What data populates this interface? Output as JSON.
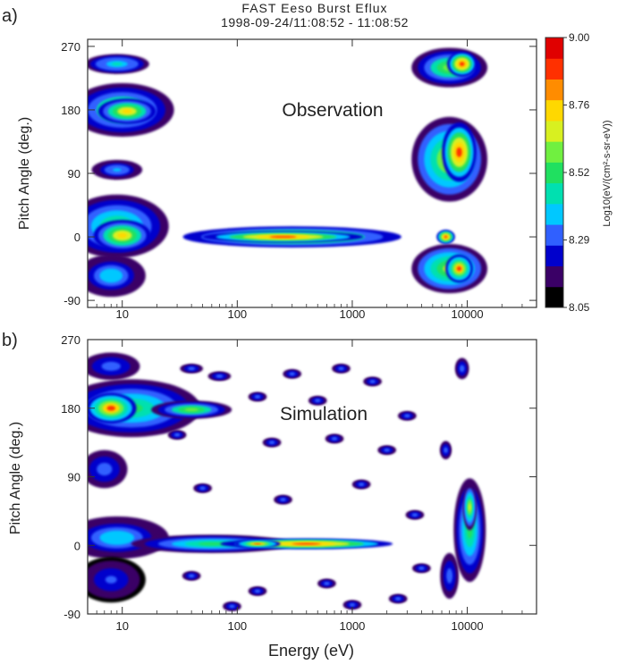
{
  "header": {
    "line1": "FAST  Eeso  Burst  Eflux",
    "line2": "1998-09-24/11:08:52  -  11:08:52"
  },
  "colorbar": {
    "label": "Log10(eV/(cm²-s-sr-eV))",
    "ticks": [
      "9.00",
      "8.76",
      "8.52",
      "8.29",
      "8.05"
    ],
    "colors": [
      "#000000",
      "#3a0066",
      "#0000cc",
      "#3060ff",
      "#00c8ff",
      "#00e0b0",
      "#20e060",
      "#70f040",
      "#d8f020",
      "#ffd800",
      "#ff8c00",
      "#ff3000",
      "#e00000"
    ]
  },
  "chart_data": [
    {
      "type": "heatmap",
      "panel_label": "a)",
      "annotation": "Observation",
      "ylabel": "Pitch Angle (deg.)",
      "xlabel": "",
      "xscale": "log",
      "xlim": [
        5,
        40000
      ],
      "ylim": [
        -100,
        280
      ],
      "xticks": [
        10,
        100,
        1000,
        10000
      ],
      "xtick_labels": [
        "10",
        "100",
        "1000",
        "10000"
      ],
      "yticks": [
        -90,
        0,
        90,
        180,
        270
      ],
      "ytick_labels": [
        "-90",
        "0",
        "90",
        "180",
        "270"
      ],
      "zlim": [
        8.05,
        9.0
      ],
      "blobs": [
        {
          "x": 10,
          "y": 180,
          "rx": 0.45,
          "ry": 38,
          "z": 8.6
        },
        {
          "x": 11,
          "y": 178,
          "rx": 0.25,
          "ry": 18,
          "z": 8.8
        },
        {
          "x": 9,
          "y": 245,
          "rx": 0.28,
          "ry": 14,
          "z": 8.45
        },
        {
          "x": 9,
          "y": 95,
          "rx": 0.22,
          "ry": 14,
          "z": 8.35
        },
        {
          "x": 9,
          "y": 15,
          "rx": 0.45,
          "ry": 45,
          "z": 8.55
        },
        {
          "x": 10,
          "y": 2,
          "rx": 0.25,
          "ry": 22,
          "z": 8.8
        },
        {
          "x": 8,
          "y": -55,
          "rx": 0.3,
          "ry": 30,
          "z": 8.4
        },
        {
          "x": 300,
          "y": 0,
          "rx": 0.95,
          "ry": 15,
          "z": 8.8
        },
        {
          "x": 250,
          "y": 0,
          "rx": 0.7,
          "ry": 8,
          "z": 8.95
        },
        {
          "x": 7000,
          "y": 110,
          "rx": 0.33,
          "ry": 60,
          "z": 8.7
        },
        {
          "x": 8500,
          "y": 120,
          "rx": 0.15,
          "ry": 42,
          "z": 8.95
        },
        {
          "x": 7000,
          "y": 240,
          "rx": 0.33,
          "ry": 28,
          "z": 8.6
        },
        {
          "x": 9000,
          "y": 245,
          "rx": 0.13,
          "ry": 18,
          "z": 8.95
        },
        {
          "x": 7000,
          "y": -45,
          "rx": 0.33,
          "ry": 35,
          "z": 8.65
        },
        {
          "x": 8500,
          "y": -45,
          "rx": 0.12,
          "ry": 20,
          "z": 8.9
        },
        {
          "x": 6500,
          "y": 0,
          "rx": 0.08,
          "ry": 10,
          "z": 8.95
        }
      ]
    },
    {
      "type": "heatmap",
      "panel_label": "b)",
      "annotation": "Simulation",
      "ylabel": "Pitch Angle (deg.)",
      "xlabel": "Energy (eV)",
      "xscale": "log",
      "xlim": [
        5,
        40000
      ],
      "ylim": [
        -90,
        270
      ],
      "xticks": [
        10,
        100,
        1000,
        10000
      ],
      "xtick_labels": [
        "10",
        "100",
        "1000",
        "10000"
      ],
      "yticks": [
        -90,
        0,
        90,
        180,
        270
      ],
      "ytick_labels": [
        "-90",
        "0",
        "90",
        "180",
        "270"
      ],
      "zlim": [
        8.05,
        9.0
      ],
      "blobs": [
        {
          "x": 12,
          "y": 180,
          "rx": 0.6,
          "ry": 38,
          "z": 8.5
        },
        {
          "x": 8,
          "y": 180,
          "rx": 0.22,
          "ry": 20,
          "z": 8.9
        },
        {
          "x": 40,
          "y": 178,
          "rx": 0.35,
          "ry": 12,
          "z": 8.6
        },
        {
          "x": 8,
          "y": 235,
          "rx": 0.25,
          "ry": 18,
          "z": 8.3
        },
        {
          "x": 7,
          "y": 100,
          "rx": 0.2,
          "ry": 25,
          "z": 8.3
        },
        {
          "x": 9,
          "y": 10,
          "rx": 0.45,
          "ry": 28,
          "z": 8.4
        },
        {
          "x": 8,
          "y": -45,
          "rx": 0.3,
          "ry": 30,
          "z": 8.25
        },
        {
          "x": 60,
          "y": 2,
          "rx": 0.7,
          "ry": 12,
          "z": 8.55
        },
        {
          "x": 400,
          "y": 2,
          "rx": 0.75,
          "ry": 7,
          "z": 8.95
        },
        {
          "x": 150,
          "y": 2,
          "rx": 0.2,
          "ry": 5,
          "z": 8.9
        },
        {
          "x": 10500,
          "y": 20,
          "rx": 0.14,
          "ry": 68,
          "z": 8.5
        },
        {
          "x": 10500,
          "y": 50,
          "rx": 0.06,
          "ry": 30,
          "z": 8.7
        },
        {
          "x": 7000,
          "y": -40,
          "rx": 0.08,
          "ry": 30,
          "z": 8.3
        },
        {
          "x": 6500,
          "y": 125,
          "rx": 0.05,
          "ry": 12,
          "z": 8.3
        },
        {
          "x": 9000,
          "y": 232,
          "rx": 0.06,
          "ry": 14,
          "z": 8.3
        },
        {
          "x": 40,
          "y": 232,
          "rx": 0.1,
          "ry": 6,
          "z": 8.3
        },
        {
          "x": 70,
          "y": 222,
          "rx": 0.1,
          "ry": 6,
          "z": 8.3
        },
        {
          "x": 150,
          "y": 195,
          "rx": 0.08,
          "ry": 6,
          "z": 8.3
        },
        {
          "x": 300,
          "y": 225,
          "rx": 0.08,
          "ry": 6,
          "z": 8.3
        },
        {
          "x": 500,
          "y": 190,
          "rx": 0.08,
          "ry": 6,
          "z": 8.3
        },
        {
          "x": 800,
          "y": 232,
          "rx": 0.08,
          "ry": 6,
          "z": 8.3
        },
        {
          "x": 1500,
          "y": 215,
          "rx": 0.08,
          "ry": 6,
          "z": 8.3
        },
        {
          "x": 3000,
          "y": 170,
          "rx": 0.08,
          "ry": 6,
          "z": 8.3
        },
        {
          "x": 30,
          "y": 145,
          "rx": 0.08,
          "ry": 6,
          "z": 8.3
        },
        {
          "x": 200,
          "y": 135,
          "rx": 0.08,
          "ry": 6,
          "z": 8.3
        },
        {
          "x": 700,
          "y": 140,
          "rx": 0.08,
          "ry": 6,
          "z": 8.3
        },
        {
          "x": 2000,
          "y": 125,
          "rx": 0.08,
          "ry": 6,
          "z": 8.3
        },
        {
          "x": 50,
          "y": 75,
          "rx": 0.08,
          "ry": 6,
          "z": 8.3
        },
        {
          "x": 250,
          "y": 60,
          "rx": 0.08,
          "ry": 6,
          "z": 8.3
        },
        {
          "x": 1200,
          "y": 80,
          "rx": 0.08,
          "ry": 6,
          "z": 8.3
        },
        {
          "x": 3500,
          "y": 40,
          "rx": 0.08,
          "ry": 6,
          "z": 8.3
        },
        {
          "x": 40,
          "y": -40,
          "rx": 0.08,
          "ry": 6,
          "z": 8.3
        },
        {
          "x": 150,
          "y": -60,
          "rx": 0.08,
          "ry": 6,
          "z": 8.3
        },
        {
          "x": 600,
          "y": -50,
          "rx": 0.08,
          "ry": 6,
          "z": 8.3
        },
        {
          "x": 2500,
          "y": -70,
          "rx": 0.08,
          "ry": 6,
          "z": 8.3
        },
        {
          "x": 4000,
          "y": -30,
          "rx": 0.08,
          "ry": 6,
          "z": 8.3
        },
        {
          "x": 90,
          "y": -80,
          "rx": 0.08,
          "ry": 6,
          "z": 8.3
        },
        {
          "x": 1000,
          "y": -78,
          "rx": 0.08,
          "ry": 6,
          "z": 8.3
        }
      ]
    }
  ]
}
